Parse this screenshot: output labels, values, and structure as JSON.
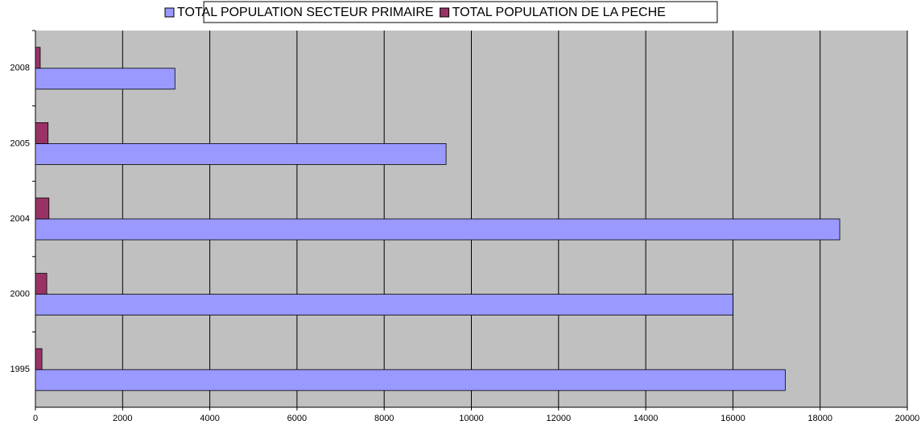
{
  "chart_data": {
    "type": "barh",
    "categories": [
      "1995",
      "2000",
      "2004",
      "2005",
      "2008"
    ],
    "series": [
      {
        "name": "TOTAL POPULATION SECTEUR PRIMAIRE",
        "color": "#9999ff",
        "values": [
          17200,
          16000,
          18450,
          9420,
          3200
        ]
      },
      {
        "name": "TOTAL POPULATION DE LA PECHE",
        "color": "#993366",
        "values": [
          150,
          260,
          310,
          290,
          110
        ]
      }
    ],
    "xlim": [
      0,
      20000
    ],
    "xticks": [
      0,
      2000,
      4000,
      6000,
      8000,
      10000,
      12000,
      14000,
      16000,
      18000,
      20000
    ],
    "grid": true,
    "legend": "top"
  }
}
